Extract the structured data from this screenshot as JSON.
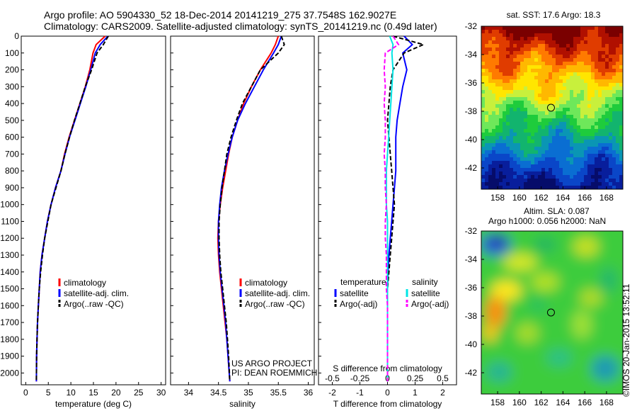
{
  "title_line1": "Argo profile: AO 5904330_52 18-Dec-2014 20141219_275 37.7548S 162.9027E",
  "title_line2": "Climatology: CARS2009. Satellite-adjusted climatology: synTS_20141219.nc (0.49d later)",
  "sst_title": "sat. SST: 17.6 Argo: 18.3",
  "sla_title_1": "Altim. SLA: 0.087",
  "sla_title_2": "Argo h1000: 0.056 h2000: NaN",
  "project_1": "US ARGO PROJECT",
  "project_2": "PI: DEAN ROEMMICH",
  "stamp": "©IMOS 20-Jan-2015 13:52:11",
  "colors": {
    "climatology": "#ff0000",
    "satellite": "#0000ff",
    "argo": "#000000",
    "salinity_satellite": "#00e5e5",
    "salinity_argo": "#ff00ff"
  },
  "chart_data": [
    {
      "type": "line",
      "xlabel": "temperature (deg C)",
      "ylabel": "",
      "xlim": [
        -1,
        31
      ],
      "ylim": [
        2070,
        0
      ],
      "xticks": [
        0,
        5,
        10,
        15,
        20,
        25,
        30
      ],
      "yticks": [
        0,
        100,
        200,
        300,
        400,
        500,
        600,
        700,
        800,
        900,
        1000,
        1100,
        1200,
        1300,
        1400,
        1500,
        1600,
        1700,
        1800,
        1900,
        2000
      ],
      "grid": false,
      "legend_position": "lower-middle",
      "series": [
        {
          "name": "climatology",
          "color": "#ff0000",
          "x": [
            17.6,
            15.6,
            14.9,
            14.2,
            13.2,
            12.0,
            10.8,
            9.6,
            8.6,
            7.8,
            6.6,
            5.6,
            4.8,
            4.2,
            3.6,
            3.2,
            3.0,
            2.8,
            2.6,
            2.5,
            2.4,
            2.35
          ],
          "y": [
            0,
            50,
            100,
            200,
            300,
            400,
            500,
            600,
            700,
            800,
            900,
            1000,
            1100,
            1200,
            1300,
            1400,
            1500,
            1600,
            1700,
            1800,
            1900,
            2050
          ]
        },
        {
          "name": "satellite-adj. clim.",
          "color": "#0000ff",
          "x": [
            18.2,
            16.5,
            15.4,
            14.4,
            13.3,
            12.1,
            10.9,
            9.7,
            8.7,
            7.8,
            6.6,
            5.6,
            4.8,
            4.2,
            3.6,
            3.2,
            3.0,
            2.8,
            2.6,
            2.5,
            2.4,
            2.35
          ],
          "y": [
            0,
            50,
            100,
            200,
            300,
            400,
            500,
            600,
            700,
            800,
            900,
            1000,
            1100,
            1200,
            1300,
            1400,
            1500,
            1600,
            1700,
            1800,
            1900,
            2050
          ]
        },
        {
          "name": "Argo(..raw -QC)",
          "color": "#000000",
          "x": [
            18.3,
            17.2,
            15.8,
            14.6,
            13.2,
            12.0,
            10.8,
            9.7,
            8.7,
            7.8,
            6.7,
            5.6,
            4.9,
            4.2,
            3.7,
            3.3,
            3.0,
            2.8,
            2.6,
            2.5,
            2.4,
            2.35
          ],
          "y": [
            0,
            50,
            100,
            200,
            300,
            400,
            500,
            600,
            700,
            800,
            900,
            1000,
            1100,
            1200,
            1300,
            1400,
            1500,
            1600,
            1700,
            1800,
            1900,
            2050
          ]
        }
      ]
    },
    {
      "type": "line",
      "xlabel": "salinity",
      "ylabel": "",
      "xlim": [
        33.7,
        36.1
      ],
      "ylim": [
        2070,
        0
      ],
      "xticks": [
        34,
        34.5,
        35,
        35.5,
        36
      ],
      "grid": false,
      "legend_position": "lower-right",
      "series": [
        {
          "name": "climatology",
          "color": "#ff0000",
          "x": [
            35.5,
            35.45,
            35.38,
            35.2,
            35.05,
            34.92,
            34.82,
            34.73,
            34.67,
            34.62,
            34.57,
            34.53,
            34.5,
            34.49,
            34.5,
            34.52,
            34.55,
            34.58,
            34.61,
            34.64,
            34.66,
            34.69
          ],
          "y": [
            0,
            50,
            100,
            200,
            300,
            400,
            500,
            600,
            700,
            800,
            900,
            1000,
            1100,
            1200,
            1300,
            1400,
            1500,
            1600,
            1700,
            1800,
            1900,
            2050
          ]
        },
        {
          "name": "satellite-adj. clim.",
          "color": "#0000ff",
          "x": [
            35.55,
            35.5,
            35.42,
            35.25,
            35.1,
            34.95,
            34.82,
            34.73,
            34.66,
            34.6,
            34.55,
            34.52,
            34.5,
            34.5,
            34.51,
            34.53,
            34.56,
            34.59,
            34.62,
            34.64,
            34.66,
            34.69
          ],
          "y": [
            0,
            50,
            100,
            200,
            300,
            400,
            500,
            600,
            700,
            800,
            900,
            1000,
            1100,
            1200,
            1300,
            1400,
            1500,
            1600,
            1700,
            1800,
            1900,
            2050
          ]
        },
        {
          "name": "Argo(..raw -QC)",
          "color": "#000000",
          "x": [
            35.55,
            35.6,
            35.5,
            35.2,
            35.05,
            34.9,
            34.8,
            34.71,
            34.64,
            34.6,
            34.56,
            34.53,
            34.51,
            34.51,
            34.52,
            34.54,
            34.57,
            34.6,
            34.63,
            34.65,
            34.67,
            34.69
          ],
          "y": [
            0,
            50,
            100,
            200,
            300,
            400,
            500,
            600,
            700,
            800,
            900,
            1000,
            1100,
            1200,
            1300,
            1400,
            1500,
            1600,
            1700,
            1800,
            1900,
            2050
          ]
        }
      ]
    },
    {
      "type": "line",
      "xlabel": "T difference from climatology",
      "xlabel_top": "S difference from climatology",
      "xlim": [
        -2.5,
        2.5
      ],
      "ylim": [
        2070,
        0
      ],
      "xticks": [
        -2,
        -1,
        0,
        1,
        2
      ],
      "xticks_top": [
        -0.5,
        -0.25,
        0,
        0.25,
        0.5
      ],
      "grid": false,
      "legend_position": "lower",
      "legend_title_left": "temperature",
      "legend_title_right": "salinity",
      "series": [
        {
          "name": "satellite",
          "quantity": "temperature",
          "color": "#0000ff",
          "x": [
            0.6,
            0.9,
            0.55,
            0.7,
            0.55,
            0.45,
            0.35,
            0.3,
            0.3,
            0.3,
            0.25,
            0.2,
            0.15,
            0.1,
            0.05,
            0.02,
            0.0,
            0.0,
            0.0,
            0.0,
            0.0,
            0.0
          ],
          "y": [
            0,
            50,
            100,
            200,
            300,
            400,
            500,
            600,
            700,
            800,
            900,
            1000,
            1100,
            1200,
            1300,
            1400,
            1500,
            1600,
            1700,
            1800,
            1900,
            2050
          ]
        },
        {
          "name": "Argo(-adj)",
          "quantity": "temperature",
          "color": "#000000",
          "x": [
            0.2,
            1.3,
            0.6,
            0.2,
            0.1,
            0.05,
            0.0,
            0.05,
            0.1,
            0.15,
            0.2,
            0.25,
            0.2,
            0.15,
            0.1,
            0.05,
            0.0,
            0.0,
            0.0,
            0.0,
            0.0,
            0.0
          ],
          "y": [
            0,
            50,
            100,
            200,
            300,
            400,
            500,
            600,
            700,
            800,
            900,
            1000,
            1100,
            1200,
            1300,
            1400,
            1500,
            1600,
            1700,
            1800,
            1900,
            2050
          ]
        },
        {
          "name": "satellite",
          "quantity": "salinity",
          "color": "#00e5e5",
          "x": [
            0.02,
            0.05,
            0.04,
            0.05,
            0.04,
            0.03,
            0.02,
            0.01,
            0.0,
            -0.01,
            -0.01,
            -0.01,
            0.0,
            0.0,
            0.0,
            0.0,
            0.0,
            0.0,
            0.0,
            0.0,
            0.0,
            0.0
          ],
          "y": [
            0,
            50,
            100,
            200,
            300,
            400,
            500,
            600,
            700,
            800,
            900,
            1000,
            1100,
            1200,
            1300,
            1400,
            1500,
            1600,
            1700,
            1800,
            1900,
            2050
          ]
        },
        {
          "name": "Argo(-adj)",
          "quantity": "salinity",
          "color": "#ff00ff",
          "x": [
            0.05,
            0.1,
            -0.02,
            -0.03,
            -0.02,
            -0.03,
            -0.02,
            -0.02,
            -0.03,
            -0.02,
            -0.02,
            -0.01,
            -0.02,
            -0.02,
            -0.01,
            -0.01,
            -0.01,
            0.0,
            0.0,
            0.0,
            0.0,
            0.0
          ],
          "y": [
            0,
            50,
            100,
            200,
            300,
            400,
            500,
            600,
            700,
            800,
            900,
            1000,
            1100,
            1200,
            1300,
            1400,
            1500,
            1600,
            1700,
            1800,
            1900,
            2050
          ]
        }
      ]
    },
    {
      "type": "heatmap",
      "title": "sat. SST: 17.6 Argo: 18.3",
      "xlim": [
        156.5,
        169.5
      ],
      "ylim": [
        -43.5,
        -32
      ],
      "xticks": [
        158,
        160,
        162,
        164,
        166,
        168
      ],
      "yticks": [
        -32,
        -34,
        -36,
        -38,
        -40,
        -42
      ],
      "marker": {
        "lon": 162.9,
        "lat": -37.75
      }
    },
    {
      "type": "heatmap",
      "title": "Altim. SLA: 0.087",
      "xlim": [
        156.5,
        169.5
      ],
      "ylim": [
        -43.5,
        -32
      ],
      "xticks": [
        158,
        160,
        162,
        164,
        166,
        168
      ],
      "yticks": [
        -32,
        -34,
        -36,
        -38,
        -40,
        -42
      ],
      "marker": {
        "lon": 162.9,
        "lat": -37.75
      }
    }
  ]
}
